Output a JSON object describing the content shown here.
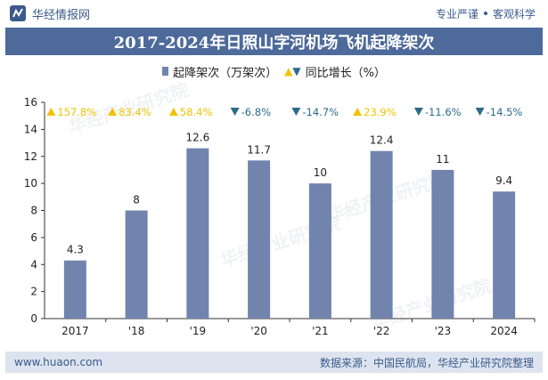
{
  "header": {
    "brand_name": "华经情报网",
    "tagline_left": "专业严谨",
    "tagline_right": "客观科学"
  },
  "footer": {
    "url": "www.huaon.com",
    "source": "数据来源：中国民航局，华经产业研究院整理"
  },
  "watermark": "华经产业研究院",
  "colors": {
    "bar": "#7184ad",
    "title_bg": "#4d6a9a",
    "up": "#f2c200",
    "down": "#2a6b8a",
    "footer_bg": "#dde4ef"
  },
  "chart_data": {
    "type": "bar",
    "title": "2017-2024年日照山字河机场飞机起降架次",
    "categories": [
      "2017",
      "'18",
      "'19",
      "'20",
      "'21",
      "'22",
      "'23",
      "2024"
    ],
    "series": [
      {
        "name": "起降架次（万架次）",
        "values": [
          4.3,
          8,
          12.6,
          11.7,
          10,
          12.4,
          11,
          9.4
        ],
        "value_labels": [
          "4.3",
          "8",
          "12.6",
          "11.7",
          "10",
          "12.4",
          "11",
          "9.4"
        ]
      },
      {
        "name": "同比增长（%）",
        "values": [
          157.8,
          83.4,
          58.4,
          -6.8,
          -14.7,
          23.9,
          -11.6,
          -14.5
        ],
        "labels": [
          "157.8%",
          "83.4%",
          "58.4%",
          "-6.8%",
          "-14.7%",
          "23.9%",
          "-11.6%",
          "-14.5%"
        ]
      }
    ],
    "ylim": [
      0,
      16
    ],
    "yticks": [
      0,
      2,
      4,
      6,
      8,
      10,
      12,
      14,
      16
    ],
    "ytick_labels": [
      "0",
      "2",
      "4",
      "6",
      "8",
      "10",
      "12",
      "14",
      "16"
    ],
    "grid": false,
    "legend_position": "top-center"
  }
}
